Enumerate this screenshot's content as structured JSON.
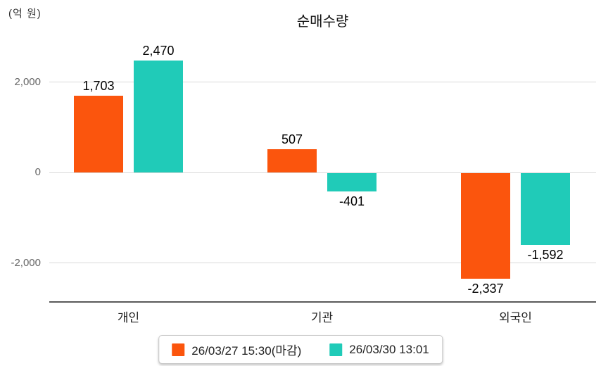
{
  "chart_data": {
    "type": "bar",
    "title": "순매수량",
    "ylabel": "(억 원)",
    "categories": [
      "개인",
      "기관",
      "외국인"
    ],
    "series": [
      {
        "name": "26/03/27 15:30(마감)",
        "color": "#FB550D",
        "values": [
          1703,
          507,
          -2337
        ],
        "labels": [
          "1,703",
          "507",
          "-2,337"
        ]
      },
      {
        "name": "26/03/30 13:01",
        "color": "#20CBB8",
        "values": [
          2470,
          -401,
          -1592
        ],
        "labels": [
          "2,470",
          "-401",
          "-1,592"
        ]
      }
    ],
    "y_ticks": [
      {
        "value": 2000,
        "label": "2,000"
      },
      {
        "value": 0,
        "label": "0"
      },
      {
        "value": -2000,
        "label": "-2,000"
      }
    ],
    "ylim": [
      -2900,
      2900
    ],
    "grid": true,
    "legend_position": "bottom",
    "colors": {
      "grid_line": "#d9d9d9",
      "axis_line": "#5a5a5a",
      "tick_text": "#666666",
      "value_text": "#000000",
      "category_text": "#222222"
    }
  }
}
